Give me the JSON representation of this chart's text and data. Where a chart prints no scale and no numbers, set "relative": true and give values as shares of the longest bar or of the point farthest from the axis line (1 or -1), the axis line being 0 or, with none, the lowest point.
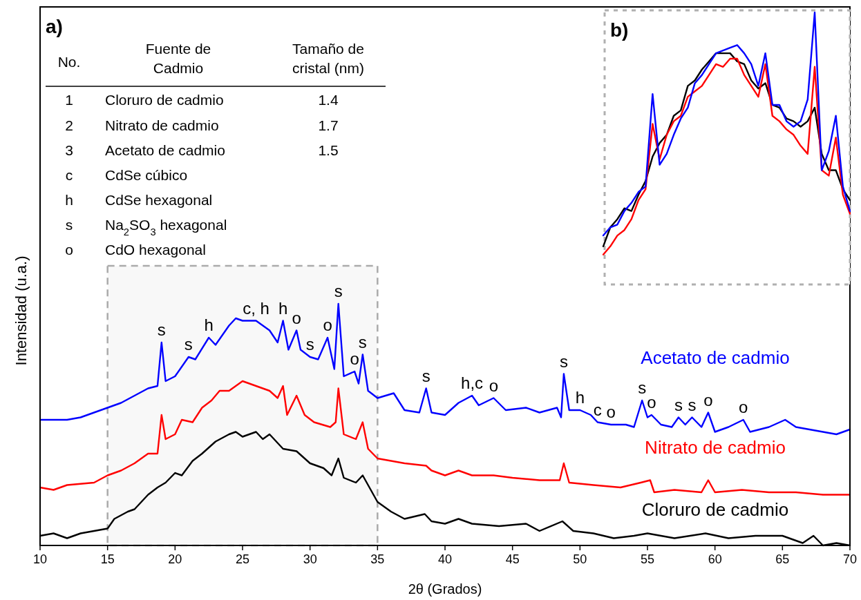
{
  "chart_data": [
    {
      "type": "line",
      "relative": true,
      "xlabel": "2θ (Grados)",
      "ylabel": "Intensidad (u.a.)",
      "xlim": [
        10,
        70
      ],
      "xticks": [
        10,
        15,
        20,
        25,
        30,
        35,
        40,
        45,
        50,
        55,
        60,
        65,
        70
      ],
      "bands": [
        {
          "axis": "x",
          "from": 15,
          "to": 35,
          "color": "#aaaaaa"
        }
      ],
      "series": [
        {
          "name": "Cloruro de cadmio",
          "color": "#000000",
          "x": [
            10,
            11,
            12,
            13,
            14,
            15,
            15.5,
            16.5,
            17,
            18,
            18.7,
            19.3,
            20,
            20.5,
            21.3,
            22,
            23,
            24,
            24.5,
            25,
            26,
            26.5,
            27,
            28,
            29,
            30,
            31,
            31.6,
            32.1,
            32.5,
            33.4,
            33.9,
            34.5,
            35,
            36,
            37,
            38.5,
            39,
            40,
            41,
            42,
            44,
            46,
            47,
            48.7,
            49.5,
            51,
            52.5,
            54,
            55,
            57,
            59.3,
            61,
            63,
            65,
            66.5,
            67.3,
            68,
            69,
            70
          ],
          "values": [
            0.04,
            0.05,
            0.03,
            0.05,
            0.06,
            0.07,
            0.11,
            0.14,
            0.15,
            0.21,
            0.24,
            0.26,
            0.3,
            0.29,
            0.35,
            0.38,
            0.43,
            0.46,
            0.47,
            0.45,
            0.47,
            0.44,
            0.46,
            0.4,
            0.39,
            0.34,
            0.32,
            0.29,
            0.36,
            0.28,
            0.26,
            0.29,
            0.23,
            0.18,
            0.14,
            0.11,
            0.13,
            0.1,
            0.09,
            0.11,
            0.09,
            0.08,
            0.09,
            0.06,
            0.1,
            0.06,
            0.05,
            0.03,
            0.04,
            0.05,
            0.03,
            0.05,
            0.03,
            0.04,
            0.04,
            0.01,
            0.04,
            0,
            0.01,
            0
          ]
        },
        {
          "name": "Nitrato de cadmio",
          "color": "#ff0000",
          "x": [
            10,
            11,
            12,
            14,
            15,
            16,
            17,
            18,
            18.7,
            19.0,
            19.3,
            20,
            20.5,
            21.3,
            22,
            22.7,
            23.3,
            24,
            25,
            26,
            27,
            27.6,
            28.0,
            28.3,
            29.0,
            29.6,
            30.3,
            31.5,
            31.9,
            32.1,
            32.5,
            33.4,
            33.9,
            34.3,
            35,
            36,
            37,
            38.6,
            39,
            40,
            41,
            42,
            43.6,
            45,
            47,
            48.5,
            48.8,
            49.2,
            51,
            53,
            54.5,
            55.2,
            55.5,
            57,
            59,
            59.5,
            60,
            62,
            64,
            66,
            68,
            70
          ],
          "values": [
            0.24,
            0.23,
            0.25,
            0.26,
            0.29,
            0.31,
            0.34,
            0.38,
            0.38,
            0.54,
            0.44,
            0.46,
            0.52,
            0.51,
            0.57,
            0.6,
            0.64,
            0.64,
            0.68,
            0.66,
            0.64,
            0.61,
            0.66,
            0.54,
            0.62,
            0.54,
            0.51,
            0.49,
            0.51,
            0.65,
            0.46,
            0.44,
            0.51,
            0.4,
            0.36,
            0.35,
            0.34,
            0.33,
            0.31,
            0.29,
            0.31,
            0.29,
            0.29,
            0.28,
            0.27,
            0.27,
            0.34,
            0.26,
            0.25,
            0.24,
            0.26,
            0.27,
            0.22,
            0.23,
            0.22,
            0.27,
            0.22,
            0.23,
            0.22,
            0.22,
            0.21,
            0.21
          ]
        },
        {
          "name": "Acetato de cadmio",
          "color": "#0000ff",
          "x": [
            10,
            12,
            13,
            14,
            15,
            16,
            17,
            18,
            18.7,
            19.0,
            19.3,
            20,
            21,
            21.5,
            22.5,
            23,
            24,
            24.5,
            25,
            26,
            26.5,
            27,
            27.6,
            28.0,
            28.4,
            29.0,
            29.3,
            30,
            30.6,
            31.3,
            31.8,
            32.1,
            32.5,
            33.3,
            33.6,
            33.9,
            34.3,
            35,
            36.2,
            37,
            38.1,
            38.6,
            39,
            40,
            41,
            42,
            42.5,
            43.6,
            44.5,
            46,
            47,
            48.3,
            48.6,
            48.8,
            49.2,
            50,
            50.8,
            51.3,
            52.3,
            53.4,
            54.0,
            54.6,
            55,
            55.3,
            56,
            56.8,
            57.3,
            57.8,
            58.3,
            59,
            59.5,
            60,
            61,
            62.1,
            62.6,
            64,
            65.2,
            66,
            67,
            68,
            69,
            70
          ],
          "values": [
            0.52,
            0.52,
            0.53,
            0.55,
            0.57,
            0.59,
            0.62,
            0.65,
            0.66,
            0.84,
            0.68,
            0.7,
            0.78,
            0.77,
            0.86,
            0.83,
            0.91,
            0.94,
            0.93,
            0.93,
            0.91,
            0.89,
            0.84,
            0.93,
            0.81,
            0.89,
            0.81,
            0.78,
            0.77,
            0.86,
            0.73,
            1.0,
            0.7,
            0.72,
            0.67,
            0.79,
            0.64,
            0.61,
            0.63,
            0.56,
            0.55,
            0.65,
            0.55,
            0.54,
            0.59,
            0.62,
            0.58,
            0.61,
            0.56,
            0.57,
            0.55,
            0.57,
            0.53,
            0.71,
            0.56,
            0.56,
            0.54,
            0.51,
            0.5,
            0.5,
            0.49,
            0.6,
            0.53,
            0.54,
            0.5,
            0.49,
            0.53,
            0.5,
            0.53,
            0.49,
            0.55,
            0.47,
            0.49,
            0.52,
            0.47,
            0.49,
            0.52,
            0.49,
            0.48,
            0.47,
            0.46,
            0.48
          ]
        }
      ],
      "annotations": [
        "a)",
        "No.",
        "Fuente de Cadmio",
        "Tamaño de cristal (nm)",
        "1",
        "Cloruro de cadmio",
        "1.4",
        "2",
        "Nitrato de cadmio",
        "1.7",
        "3",
        "Acetato de cadmio",
        "1.5",
        "c",
        "CdSe cúbico",
        "h",
        "CdSe hexagonal",
        "s",
        "Na$_{2}$SO$_{3}$ hexagonal",
        "o",
        "CdO hexagonal",
        {
          "text": "s",
          "x": 19.0,
          "y": 0.84
        },
        {
          "text": "s",
          "x": 21,
          "y": 0.78
        },
        {
          "text": "h",
          "x": 22.5,
          "y": 0.86
        },
        {
          "text": "c, h",
          "x": 26,
          "y": 0.93
        },
        {
          "text": "h",
          "x": 28.0,
          "y": 0.93
        },
        {
          "text": "o",
          "x": 29.0,
          "y": 0.89
        },
        {
          "text": "s",
          "x": 30,
          "y": 0.78
        },
        {
          "text": "o",
          "x": 31.3,
          "y": 0.86
        },
        {
          "text": "s",
          "x": 32.1,
          "y": 1.0
        },
        {
          "text": "o",
          "x": 33.3,
          "y": 0.72
        },
        {
          "text": "s",
          "x": 33.9,
          "y": 0.79
        },
        {
          "text": "s",
          "x": 38.6,
          "y": 0.65
        },
        {
          "text": "h,c",
          "x": 42,
          "y": 0.62
        },
        {
          "text": "o",
          "x": 43.6,
          "y": 0.61
        },
        {
          "text": "s",
          "x": 48.8,
          "y": 0.71
        },
        {
          "text": "h",
          "x": 50,
          "y": 0.56
        },
        {
          "text": "c",
          "x": 51.3,
          "y": 0.51
        },
        {
          "text": "o",
          "x": 52.3,
          "y": 0.5
        },
        {
          "text": "s",
          "x": 54.6,
          "y": 0.6
        },
        {
          "text": "o",
          "x": 55.3,
          "y": 0.54
        },
        {
          "text": "s",
          "x": 57.3,
          "y": 0.53
        },
        {
          "text": "s",
          "x": 58.3,
          "y": 0.53
        },
        {
          "text": "o",
          "x": 59.5,
          "y": 0.55
        },
        {
          "text": "o",
          "x": 62.1,
          "y": 0.52
        }
      ]
    },
    {
      "type": "line",
      "relative": true,
      "categories": [
        null,
        null,
        null,
        null,
        null,
        null,
        null,
        null,
        null,
        null,
        null,
        null,
        null,
        null,
        null,
        null,
        null,
        null,
        null,
        null,
        null,
        null,
        null,
        null,
        null,
        null,
        null,
        null,
        null,
        null,
        null,
        null,
        null,
        null,
        null,
        null
      ],
      "series": [
        {
          "color": "#000000",
          "values": [
            0.14,
            0.21,
            0.24,
            0.28,
            0.27,
            0.33,
            0.38,
            0.47,
            0.52,
            0.55,
            0.62,
            0.64,
            0.73,
            0.75,
            0.79,
            0.82,
            0.85,
            0.85,
            0.85,
            0.82,
            0.81,
            0.75,
            0.72,
            0.74,
            0.66,
            0.65,
            0.61,
            0.6,
            0.58,
            0.6,
            0.65,
            0.48,
            0.42,
            0.42,
            0.35,
            0.31
          ]
        },
        {
          "color": "#ff0000",
          "values": [
            0.11,
            0.14,
            0.18,
            0.2,
            0.24,
            0.31,
            0.35,
            0.59,
            0.46,
            0.55,
            0.6,
            0.62,
            0.69,
            0.71,
            0.73,
            0.77,
            0.81,
            0.8,
            0.83,
            0.83,
            0.77,
            0.73,
            0.69,
            0.81,
            0.62,
            0.6,
            0.57,
            0.55,
            0.51,
            0.48,
            0.8,
            0.42,
            0.4,
            0.54,
            0.33,
            0.26
          ]
        },
        {
          "color": "#0000ff",
          "values": [
            0.18,
            0.21,
            0.22,
            0.27,
            0.3,
            0.34,
            0.36,
            0.7,
            0.44,
            0.48,
            0.55,
            0.61,
            0.65,
            0.74,
            0.77,
            0.81,
            0.85,
            0.86,
            0.87,
            0.88,
            0.85,
            0.81,
            0.73,
            0.85,
            0.66,
            0.66,
            0.6,
            0.58,
            0.6,
            0.68,
            1,
            0.42,
            0.49,
            0.62,
            0.36,
            0.27
          ]
        }
      ],
      "annotations": [
        "b)"
      ]
    }
  ]
}
